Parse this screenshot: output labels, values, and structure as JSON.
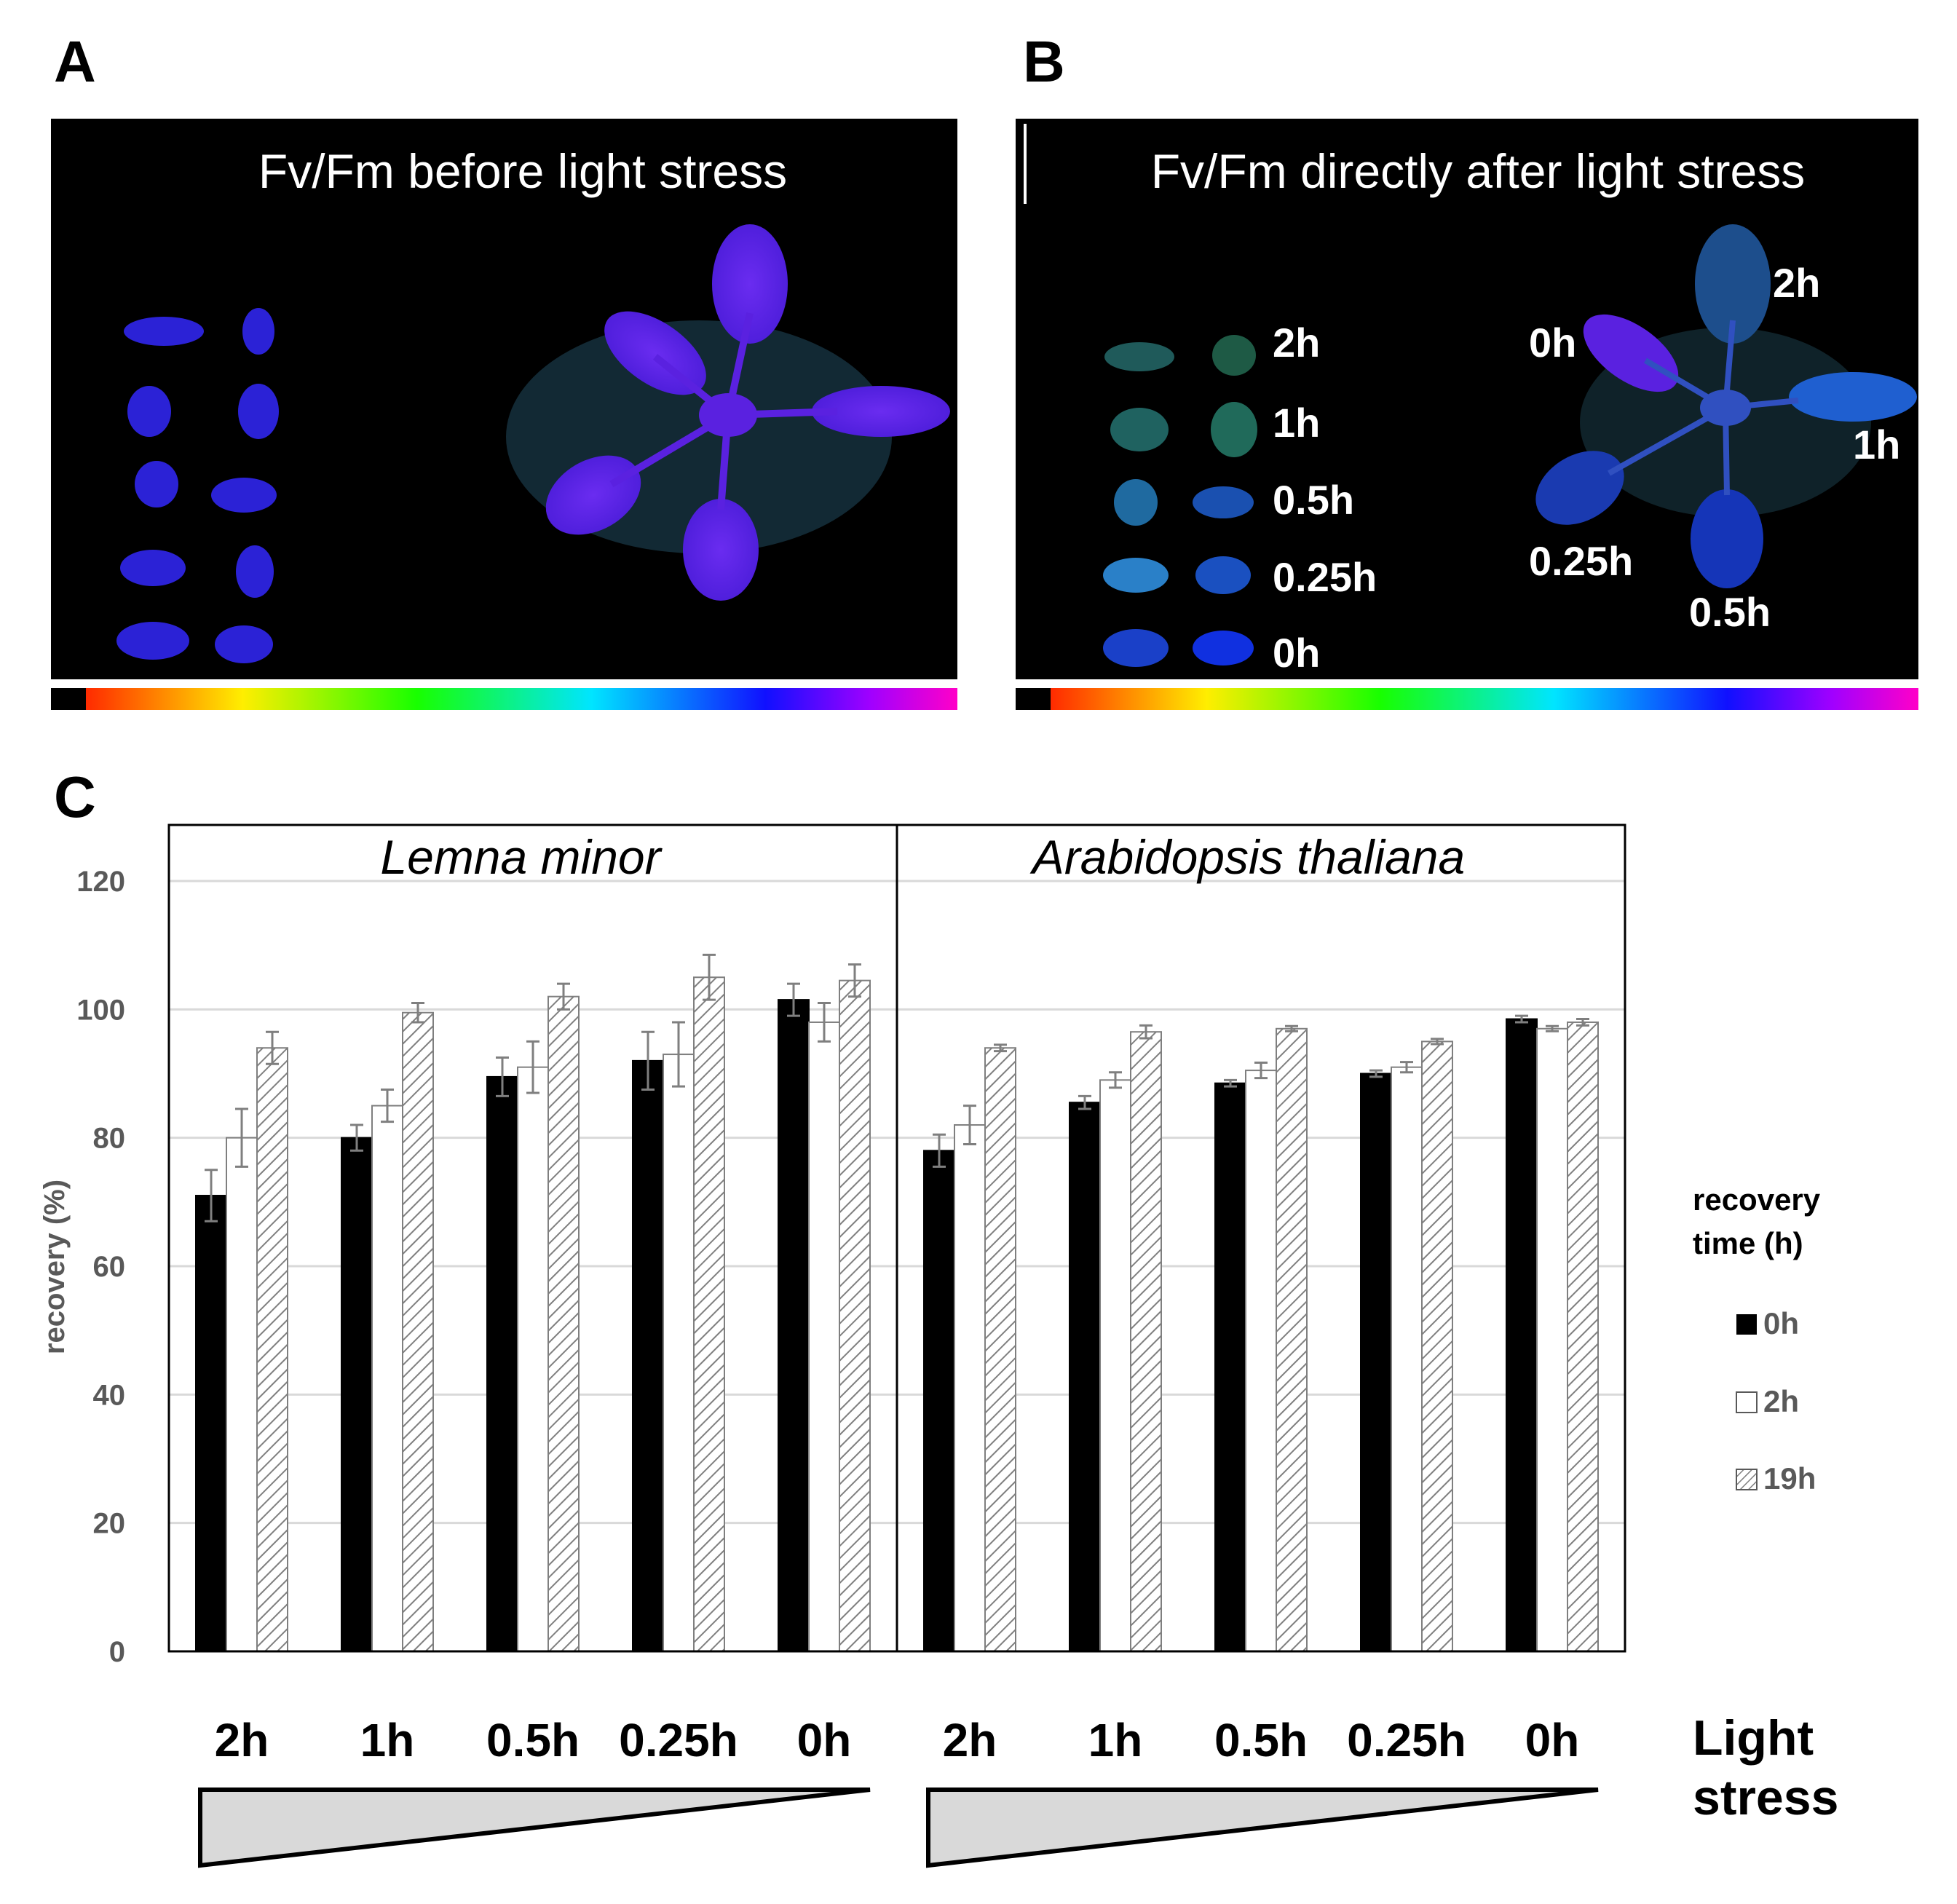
{
  "panel_letters": {
    "a": "A",
    "b": "B",
    "c": "C"
  },
  "panel_a": {
    "title": "Fv/Fm before light stress"
  },
  "panel_b": {
    "title": "Fv/Fm directly after light stress",
    "lemna_labels": [
      "2h",
      "1h",
      "0.5h",
      "0.25h",
      "0h"
    ],
    "arabidopsis_labels": {
      "top": "2h",
      "left": "0h",
      "right": "1h",
      "bottom_left": "0.25h",
      "bottom": "0.5h"
    }
  },
  "colors": {
    "bar_0h": "#000000",
    "bar_2h": "#ffffff",
    "bar_19h_hatch": "#7f7f7f",
    "axis_text": "#595959",
    "gridline": "#d9d9d9",
    "image_background": "#000000",
    "leaf_before": "#5a21e0",
    "lemna_before": "#2b22d6"
  },
  "chart_data": {
    "type": "bar",
    "ylabel": "recovery (%)",
    "ylim": [
      0,
      120
    ],
    "yticks": [
      0,
      20,
      40,
      60,
      80,
      100,
      120
    ],
    "grid": true,
    "legend": {
      "title_line1": "recovery",
      "title_line2": "time (h)",
      "placement": "right",
      "entries": [
        "0h",
        "2h",
        "19h"
      ]
    },
    "xaxis_title_line1": "Light",
    "xaxis_title_line2": "stress",
    "panels": [
      {
        "title": "Lemna minor",
        "categories": [
          "2h",
          "1h",
          "0.5h",
          "0.25h",
          "0h"
        ],
        "series": [
          {
            "name": "0h",
            "values": [
              71,
              80,
              89.5,
              92,
              101.5
            ],
            "errors": [
              4,
              2,
              3,
              4.5,
              2.5
            ]
          },
          {
            "name": "2h",
            "values": [
              80,
              85,
              91,
              93,
              98
            ],
            "errors": [
              4.5,
              2.5,
              4,
              5,
              3
            ]
          },
          {
            "name": "19h",
            "values": [
              94,
              99.5,
              102,
              105,
              104.5
            ],
            "errors": [
              2.5,
              1.5,
              2,
              3.5,
              2.5
            ]
          }
        ]
      },
      {
        "title": "Arabidopsis thaliana",
        "categories": [
          "2h",
          "1h",
          "0.5h",
          "0.25h",
          "0h"
        ],
        "series": [
          {
            "name": "0h",
            "values": [
              78,
              85.5,
              88.5,
              90,
              98.5
            ],
            "errors": [
              2.5,
              1,
              0.5,
              0.5,
              0.5
            ]
          },
          {
            "name": "2h",
            "values": [
              82,
              89,
              90.5,
              91,
              97
            ],
            "errors": [
              3,
              1.2,
              1.2,
              0.8,
              0.4
            ]
          },
          {
            "name": "19h",
            "values": [
              94,
              96.5,
              97,
              95,
              98
            ],
            "errors": [
              0.5,
              1,
              0.4,
              0.4,
              0.5
            ]
          }
        ]
      }
    ]
  }
}
